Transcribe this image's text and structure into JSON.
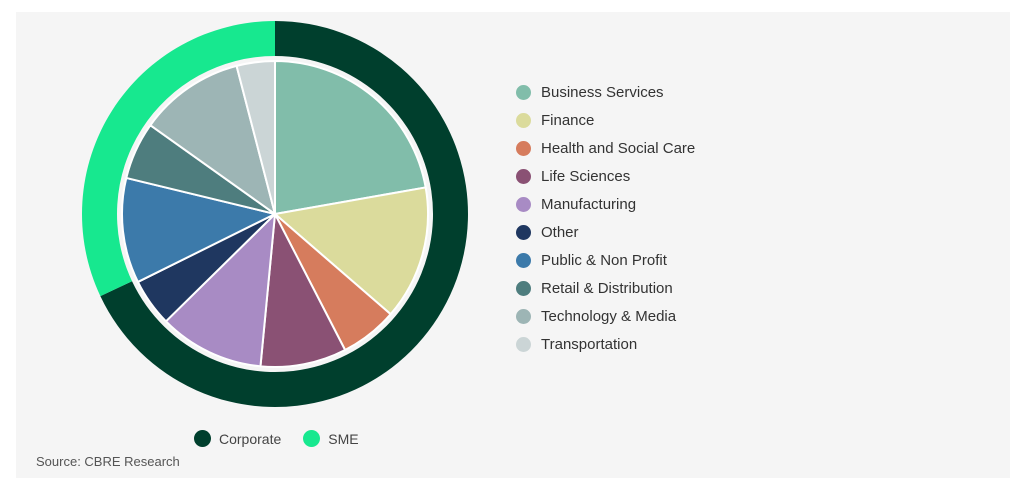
{
  "chart_data": {
    "type": "pie",
    "inner_series": {
      "categories": [
        "Business Services",
        "Finance",
        "Health and Social Care",
        "Life Sciences",
        "Manufacturing",
        "Other",
        "Public & Non Profit",
        "Retail & Distribution",
        "Technology & Media",
        "Transportation"
      ],
      "values": [
        22,
        14,
        6,
        9,
        11,
        5,
        11,
        6,
        11,
        4
      ],
      "colors": [
        "#81bdaa",
        "#dbdb9c",
        "#d67c5d",
        "#8a5174",
        "#a88bc4",
        "#1f3760",
        "#3c7aaa",
        "#4e7d7e",
        "#9db5b5",
        "#cbd5d6"
      ]
    },
    "outer_series": {
      "categories": [
        "Corporate",
        "SME"
      ],
      "values": [
        68,
        32
      ],
      "colors": [
        "#003f2d",
        "#17e88f"
      ]
    }
  },
  "source": "Source: CBRE Research"
}
